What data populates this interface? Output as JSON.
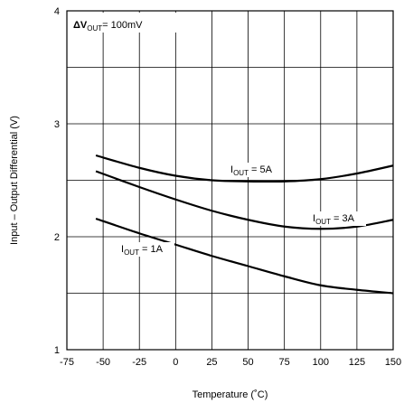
{
  "chart_data": {
    "type": "line",
    "title": "",
    "xlabel": "Temperature  (˚C)",
    "ylabel": "Input – Output Differential  (V)",
    "xlim": [
      -75,
      150
    ],
    "ylim": [
      1,
      4
    ],
    "x_ticks": [
      "-75",
      "-50",
      "-25",
      "0",
      "25",
      "50",
      "75",
      "100",
      "125",
      "150"
    ],
    "y_ticks": [
      "1",
      "",
      "2",
      "",
      "3",
      "",
      "4"
    ],
    "grid": true,
    "condition": {
      "symbol": "ΔV",
      "subscript": "OUT",
      "suffix": "= 100mV"
    },
    "series": [
      {
        "name": "I OUT = 5A",
        "label_main": "I",
        "label_sub": "OUT",
        "label_rest": " = 5A",
        "x": [
          -55,
          -25,
          0,
          25,
          50,
          75,
          100,
          125,
          150
        ],
        "y": [
          2.72,
          2.61,
          2.54,
          2.5,
          2.49,
          2.49,
          2.51,
          2.56,
          2.63
        ]
      },
      {
        "name": "I OUT = 3A",
        "label_main": "I",
        "label_sub": "OUT",
        "label_rest": "   = 3A",
        "x": [
          -55,
          -25,
          0,
          25,
          50,
          75,
          100,
          125,
          150
        ],
        "y": [
          2.58,
          2.44,
          2.33,
          2.23,
          2.15,
          2.09,
          2.07,
          2.09,
          2.15
        ]
      },
      {
        "name": "I OUT = 1A",
        "label_main": "I",
        "label_sub": "OUT",
        "label_rest": "   = 1A",
        "x": [
          -55,
          -25,
          0,
          25,
          50,
          75,
          100,
          125,
          150
        ],
        "y": [
          2.16,
          2.03,
          1.93,
          1.83,
          1.74,
          1.65,
          1.57,
          1.53,
          1.5
        ]
      }
    ]
  }
}
